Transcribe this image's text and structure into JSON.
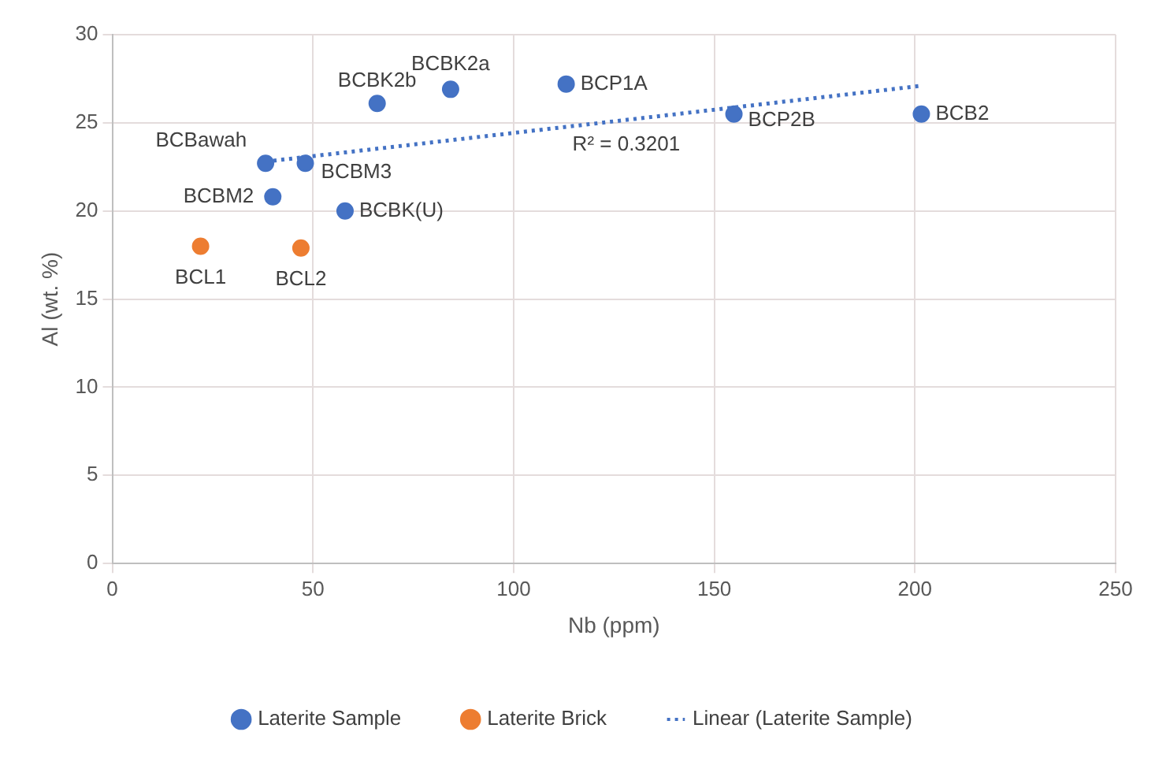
{
  "chart_data": {
    "type": "scatter",
    "xlabel": "Nb (ppm)",
    "ylabel": "Al (wt. %)",
    "xlim": [
      0,
      250
    ],
    "xticks": [
      0,
      50,
      100,
      150,
      200,
      250
    ],
    "ylim": [
      0,
      30
    ],
    "yticks": [
      0,
      5,
      10,
      15,
      20,
      25,
      30
    ],
    "grid": true,
    "legend": "bottom",
    "marker": "circle",
    "series": [
      {
        "name": "Laterite Sample",
        "color": "#4472c4",
        "x": [
          38.2,
          48.1,
          40,
          58,
          66,
          84.3,
          113.1,
          154.9,
          201.6
        ],
        "values": [
          22.7,
          22.7,
          20.8,
          20,
          26.1,
          26.9,
          27.2,
          25.5,
          25.5
        ],
        "value_labels": [
          "BCBawah",
          "BCBM3",
          "BCBM2",
          "BCBK(U)",
          "BCBK2b",
          "BCBK2a",
          "BCP1A",
          "BCP2B",
          "BCB2"
        ]
      },
      {
        "name": "Laterite Brick",
        "color": "#ed7d31",
        "x": [
          22,
          47
        ],
        "values": [
          18,
          17.9
        ],
        "value_labels": [
          "BCL1",
          "BCL2"
        ]
      },
      {
        "name": "Linear (Laterite Sample)",
        "type": "line",
        "color": "#4472c4",
        "line_style": "dotted",
        "marker": "none",
        "x": [
          38.2,
          201.6
        ],
        "values": [
          22.8,
          27.1
        ]
      }
    ],
    "annotations": [
      "R² = 0.3201"
    ]
  }
}
